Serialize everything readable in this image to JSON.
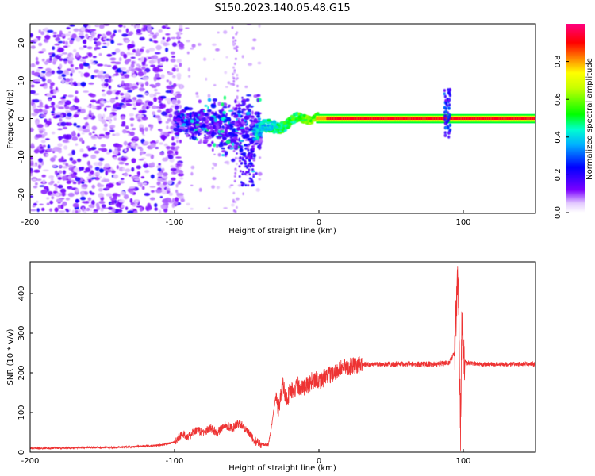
{
  "title": "S150.2023.140.05.48.G15",
  "chart_data": [
    {
      "type": "heatmap",
      "xlabel": "Height of straight line (km)",
      "ylabel": "Frequency (Hz)",
      "xlim": [
        -200,
        150
      ],
      "ylim": [
        -25,
        25
      ],
      "xticks": [
        -200,
        -100,
        0,
        100
      ],
      "yticks": [
        -20,
        -10,
        0,
        10,
        20
      ],
      "colorbar": {
        "label": "Normalized spectral amplitude",
        "range": [
          0,
          1
        ],
        "ticks": [
          "0.0",
          "0.2",
          "0.4",
          "0.6",
          "0.8"
        ],
        "colormap": [
          "#ffffff",
          "#7b00ff",
          "#0000ff",
          "#00e5ff",
          "#00ff00",
          "#ffff00",
          "#ff8000",
          "#ff0000",
          "#ff0080"
        ]
      },
      "description_regions": [
        {
          "x_range": [
            -200,
            -100
          ],
          "freq_spread": [
            -25,
            25
          ],
          "amplitude": "low (0.0-0.3)"
        },
        {
          "x_range": [
            -100,
            -40
          ],
          "freq_spread": [
            -15,
            10
          ],
          "amplitude": "low-medium (0.2-0.5)"
        },
        {
          "x_range": [
            -40,
            0
          ],
          "freq_spread": [
            -4,
            3
          ],
          "amplitude": "medium (0.4-0.6)"
        },
        {
          "x_range": [
            0,
            150
          ],
          "freq_center": 0,
          "amplitude": "high (0.8-1.0)"
        }
      ]
    },
    {
      "type": "line",
      "xlabel": "Height of straight line (km)",
      "ylabel": "SNR (10 * v/v)",
      "xlim": [
        -200,
        150
      ],
      "ylim": [
        0,
        480
      ],
      "xticks": [
        -200,
        -100,
        0,
        100
      ],
      "yticks": [
        0,
        100,
        200,
        300,
        400
      ],
      "color": "#ee3333",
      "series": [
        {
          "x": [
            -200,
            -180,
            -160,
            -140,
            -120,
            -110,
            -100,
            -95,
            -90,
            -85,
            -80,
            -75,
            -70,
            -65,
            -60,
            -55,
            -50,
            -45,
            -40,
            -35,
            -33,
            -30,
            -28,
            -25,
            -22,
            -20,
            -17,
            -15,
            -12,
            -10,
            -7,
            -5,
            -2,
            0,
            5,
            10,
            15,
            20,
            25,
            30,
            40,
            50,
            60,
            70,
            80,
            90,
            94,
            96,
            97,
            98,
            99,
            100,
            102,
            105,
            110,
            120,
            130,
            140,
            150
          ],
          "y": [
            10,
            10,
            12,
            12,
            15,
            18,
            25,
            45,
            40,
            55,
            50,
            60,
            50,
            70,
            60,
            75,
            55,
            30,
            20,
            20,
            60,
            140,
            110,
            170,
            130,
            160,
            150,
            170,
            160,
            165,
            170,
            180,
            185,
            180,
            190,
            200,
            210,
            215,
            218,
            220,
            222,
            222,
            222,
            222,
            222,
            225,
            250,
            430,
            380,
            40,
            330,
            230,
            225,
            225,
            222,
            222,
            222,
            222,
            222
          ]
        }
      ]
    }
  ]
}
